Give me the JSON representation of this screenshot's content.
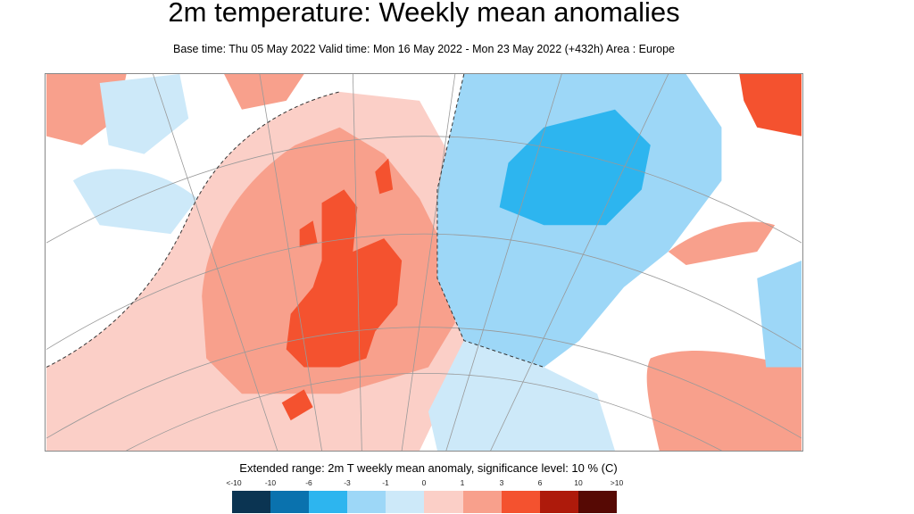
{
  "title": "2m temperature: Weekly mean anomalies",
  "subtitle": "Base time: Thu 05 May 2022 Valid time: Mon 16 May 2022 - Mon 23 May 2022 (+432h) Area : Europe",
  "legend": {
    "title": "Extended range: 2m T weekly mean anomaly, significance level: 10 % (C)",
    "ticks": [
      "<-10",
      "-10",
      "-6",
      "-3",
      "-1",
      "0",
      "1",
      "3",
      "6",
      "10",
      ">10"
    ],
    "colors": [
      "#0b3452",
      "#0a72ae",
      "#2db5ef",
      "#9dd7f7",
      "#cde9f9",
      "#fbcfc7",
      "#f8a08c",
      "#f4522f",
      "#ae1a0b",
      "#560904"
    ]
  }
}
